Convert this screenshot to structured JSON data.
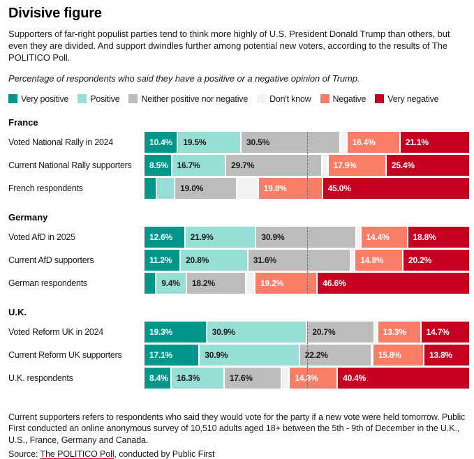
{
  "header": {
    "title": "Divisive figure",
    "description": "Supporters of far-right populist parties tend to think more highly of U.S. President Donald Trump than others, but even they are divided. And support dwindles further among potential new voters, according to the results of The POLITICO Poll.",
    "chart_note": "Percentage of respondents who said they have a positive or a negative opinion of Trump."
  },
  "legend": [
    {
      "label": "Very positive",
      "color": "#00968b"
    },
    {
      "label": "Positive",
      "color": "#97ded6"
    },
    {
      "label": "Neither positive nor negative",
      "color": "#bcbcbc"
    },
    {
      "label": "Don't know",
      "color": "#f2f2f2"
    },
    {
      "label": "Negative",
      "color": "#fa7d67"
    },
    {
      "label": "Very negative",
      "color": "#c60022"
    }
  ],
  "chart_data": {
    "type": "bar",
    "orientation": "horizontal",
    "stacked": true,
    "unit": "%",
    "x_range": [
      0,
      100
    ],
    "reference_line_pct": 50,
    "grid": false,
    "categories": [
      "Very positive",
      "Positive",
      "Neither positive nor negative",
      "Don't know",
      "Negative",
      "Very negative"
    ],
    "colors": [
      "#00968b",
      "#97ded6",
      "#bcbcbc",
      "#f2f2f2",
      "#fa7d67",
      "#c60022"
    ],
    "label_text_colors": [
      "#ffffff",
      "#1a1a1a",
      "#1a1a1a",
      "#1a1a1a",
      "#ffffff",
      "#ffffff"
    ],
    "groups": [
      {
        "name": "France",
        "rows": [
          {
            "label": "Voted National Rally in 2024",
            "values": [
              10.4,
              19.5,
              30.5,
              2.1,
              16.4,
              21.1
            ],
            "show": [
              1,
              1,
              1,
              0,
              1,
              1
            ]
          },
          {
            "label": "Current National Rally supporters",
            "values": [
              8.5,
              16.7,
              29.7,
              1.8,
              17.9,
              25.4
            ],
            "show": [
              1,
              1,
              1,
              0,
              1,
              1
            ]
          },
          {
            "label": "French respondents",
            "values": [
              3.9,
              5.6,
              19.0,
              6.7,
              19.8,
              45.0
            ],
            "show": [
              0,
              0,
              1,
              0,
              1,
              1
            ]
          }
        ]
      },
      {
        "name": "Germany",
        "rows": [
          {
            "label": "Voted AfD in 2025",
            "values": [
              12.6,
              21.9,
              30.9,
              1.4,
              14.4,
              18.8
            ],
            "show": [
              1,
              1,
              1,
              0,
              1,
              1
            ]
          },
          {
            "label": "Current AfD supporters",
            "values": [
              11.2,
              20.8,
              31.6,
              1.4,
              14.8,
              20.2
            ],
            "show": [
              1,
              1,
              1,
              0,
              1,
              1
            ]
          },
          {
            "label": "German respondents",
            "values": [
              3.7,
              9.4,
              18.2,
              2.9,
              19.2,
              46.6
            ],
            "show": [
              0,
              1,
              1,
              0,
              1,
              1
            ]
          }
        ]
      },
      {
        "name": "U.K.",
        "rows": [
          {
            "label": "Voted Reform UK in 2024",
            "values": [
              19.3,
              30.9,
              20.7,
              1.1,
              13.3,
              14.7
            ],
            "show": [
              1,
              1,
              1,
              0,
              1,
              1
            ]
          },
          {
            "label": "Current Reform UK supporters",
            "values": [
              17.1,
              30.9,
              22.2,
              0.2,
              15.8,
              13.8
            ],
            "show": [
              1,
              1,
              1,
              0,
              1,
              1
            ]
          },
          {
            "label": "U.K. respondents",
            "values": [
              8.4,
              16.3,
              17.6,
              2.5,
              14.8,
              40.4
            ],
            "show": [
              1,
              1,
              1,
              0,
              1,
              1
            ]
          }
        ]
      }
    ]
  },
  "footer": {
    "note": "Current supporters refers to respondents who said they would vote for the party if a new vote were held tomorrow. Public First conducted an online anonymous survey of 10,510 adults aged 18+ between the 5th - 9th of December in the U.K., U.S., France, Germany and Canada.",
    "source_prefix": "Source: ",
    "source_link": "The POLITICO Poll",
    "source_suffix": ", conducted by Public First"
  }
}
